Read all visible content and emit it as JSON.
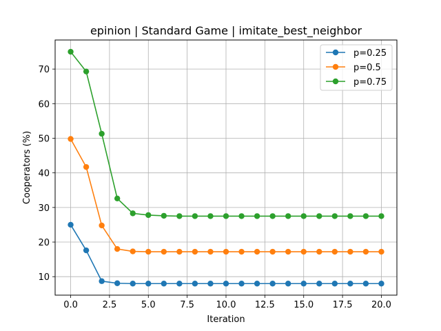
{
  "chart_data": {
    "type": "line",
    "title": "epinion | Standard Game | imitate_best_neighbor",
    "xlabel": "Iteration",
    "ylabel": "Cooperators (%)",
    "xlim": [
      -1.0,
      21.0
    ],
    "ylim": [
      4.66,
      78.4
    ],
    "xticks": [
      0.0,
      2.5,
      5.0,
      7.5,
      10.0,
      12.5,
      15.0,
      17.5,
      20.0
    ],
    "xtick_labels": [
      "0.0",
      "2.5",
      "5.0",
      "7.5",
      "10.0",
      "12.5",
      "15.0",
      "17.5",
      "20.0"
    ],
    "yticks": [
      10,
      20,
      30,
      40,
      50,
      60,
      70
    ],
    "ytick_labels": [
      "10",
      "20",
      "30",
      "40",
      "50",
      "60",
      "70"
    ],
    "grid": true,
    "legend_position": "top-right",
    "x": [
      0,
      1,
      2,
      3,
      4,
      5,
      6,
      7,
      8,
      9,
      10,
      11,
      12,
      13,
      14,
      15,
      16,
      17,
      18,
      19,
      20
    ],
    "series": [
      {
        "name": "p=0.25",
        "color": "#1f77b4",
        "values": [
          25.0,
          17.6,
          8.7,
          8.1,
          8.0,
          8.0,
          8.0,
          8.0,
          8.0,
          8.0,
          8.0,
          8.0,
          8.0,
          8.0,
          8.0,
          8.0,
          8.0,
          8.0,
          8.0,
          8.0,
          8.0
        ]
      },
      {
        "name": "p=0.5",
        "color": "#ff7f0e",
        "values": [
          49.8,
          41.7,
          24.8,
          18.0,
          17.3,
          17.2,
          17.2,
          17.2,
          17.2,
          17.2,
          17.2,
          17.2,
          17.2,
          17.2,
          17.2,
          17.2,
          17.2,
          17.2,
          17.2,
          17.2,
          17.2
        ]
      },
      {
        "name": "p=0.75",
        "color": "#2ca02c",
        "values": [
          75.0,
          69.3,
          51.3,
          32.6,
          28.3,
          27.8,
          27.6,
          27.5,
          27.5,
          27.5,
          27.5,
          27.5,
          27.5,
          27.5,
          27.5,
          27.5,
          27.5,
          27.5,
          27.5,
          27.5,
          27.5
        ]
      }
    ]
  }
}
